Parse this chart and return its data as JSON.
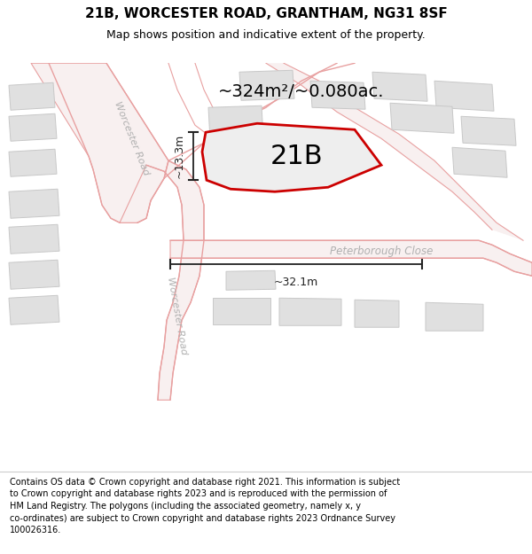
{
  "title_line1": "21B, WORCESTER ROAD, GRANTHAM, NG31 8SF",
  "title_line2": "Map shows position and indicative extent of the property.",
  "area_label": "~324m²/~0.080ac.",
  "plot_label": "21B",
  "dim_horiz": "~32.1m",
  "dim_vert": "~13.3m",
  "road_label_upper": "Worcester Road",
  "road_label_lower": "Worcester Road",
  "road_label_peterborough": "Peterborough Close",
  "footer_text": "Contains OS data © Crown copyright and database right 2021. This information is subject\nto Crown copyright and database rights 2023 and is reproduced with the permission of\nHM Land Registry. The polygons (including the associated geometry, namely x, y\nco-ordinates) are subject to Crown copyright and database rights 2023 Ordnance Survey\n100026316.",
  "bg_color": "#ffffff",
  "map_bg": "#ffffff",
  "road_fill": "#fce8e8",
  "road_edge": "#e8a0a0",
  "plot_fill": "#eeeeee",
  "plot_outline": "#cc0000",
  "building_fill": "#e0e0e0",
  "building_edge": "#c8c8c8",
  "road_text_color": "#b0b0b0",
  "dim_color": "#222222",
  "title_fontsize": 11,
  "subtitle_fontsize": 9,
  "area_fontsize": 14,
  "plot_label_fontsize": 22,
  "road_label_fontsize": 8,
  "dim_fontsize": 9,
  "footer_fontsize": 7
}
